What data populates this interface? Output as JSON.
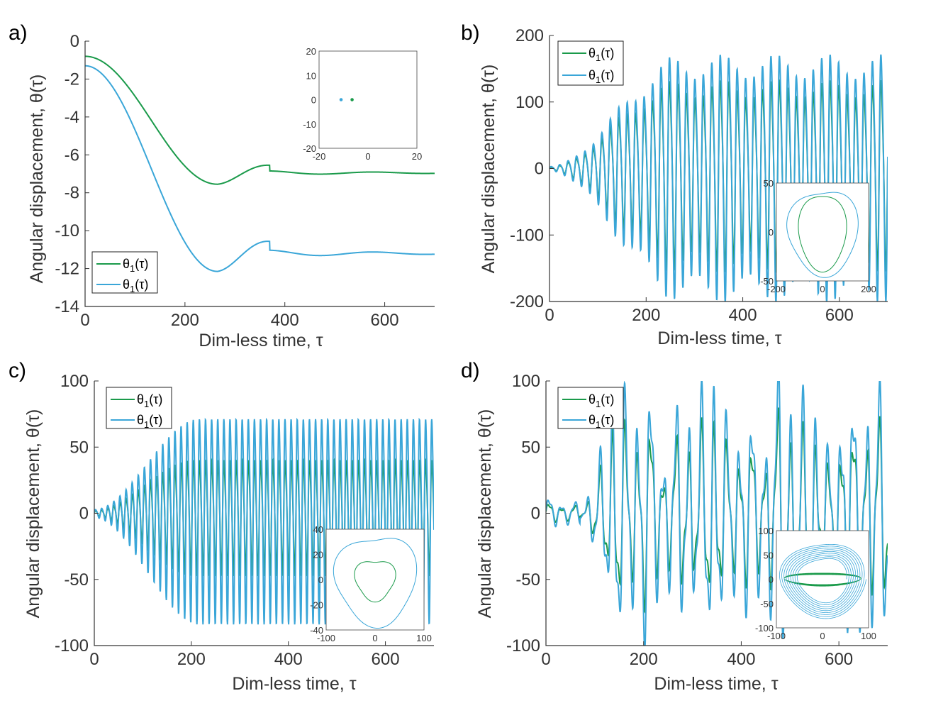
{
  "colors": {
    "green": "#1a9a4a",
    "blue": "#3aa6d8",
    "axis": "#333333"
  },
  "chart_data": [
    {
      "type": "line",
      "panel_label": "a)",
      "xlabel": "Dim-less time, τ",
      "ylabel": "Angular displacement, θ(τ)",
      "xlim": [
        0,
        700
      ],
      "ylim": [
        -14,
        0
      ],
      "xticks": [
        "0",
        "200",
        "400",
        "600"
      ],
      "yticks": [
        "-14",
        "-12",
        "-10",
        "-8",
        "-6",
        "-4",
        "-2",
        "0"
      ],
      "series": [
        {
          "name": "θ1(τ)",
          "color": "green",
          "kind": "settle",
          "start": -0.8,
          "final": -6.95,
          "min": -7.55,
          "t_min": 265,
          "bump": -6.8,
          "t_bump": 370
        },
        {
          "name": "θ1(τ)",
          "color": "blue",
          "kind": "settle",
          "start": -1.3,
          "final": -11.2,
          "min": -12.15,
          "t_min": 265,
          "bump": -10.95,
          "t_bump": 370
        }
      ],
      "legend": {
        "entries": [
          "θ1(τ)",
          "θ1(τ)"
        ],
        "location": "bottom-left"
      },
      "inset": {
        "type": "scatter",
        "xlim": [
          -20,
          20
        ],
        "ylim": [
          -20,
          20
        ],
        "xticks": [
          "-20",
          "0",
          "20"
        ],
        "yticks": [
          "-20",
          "-10",
          "0",
          "10",
          "20"
        ],
        "points": [
          {
            "x": -11,
            "y": 0,
            "color": "blue"
          },
          {
            "x": -6.5,
            "y": 0,
            "color": "green"
          }
        ]
      }
    },
    {
      "type": "line",
      "panel_label": "b)",
      "xlabel": "Dim-less time, τ",
      "ylabel": "Angular displacement, θ(τ)",
      "xlim": [
        0,
        700
      ],
      "ylim": [
        -200,
        200
      ],
      "xticks": [
        "0",
        "200",
        "400",
        "600"
      ],
      "yticks": [
        "-200",
        "-100",
        "0",
        "100",
        "200"
      ],
      "series": [
        {
          "name": "θ1(τ)",
          "color": "green",
          "kind": "growth",
          "amp_final": 130,
          "amp_start": 2,
          "t_growth": 265,
          "period": 17.5,
          "mod": 0.12
        },
        {
          "name": "θ1(τ)",
          "color": "blue",
          "kind": "growth",
          "amp_final": 168,
          "amp_start": 3,
          "t_growth": 275,
          "period": 17.5,
          "mod": 0.12
        }
      ],
      "legend": {
        "entries": [
          "θ1(τ)",
          "θ1(τ)"
        ],
        "location": "top-left"
      },
      "inset": {
        "type": "line",
        "xlim": [
          -200,
          200
        ],
        "ylim": [
          -50,
          50
        ],
        "xticks": [
          "-200",
          "0",
          "200"
        ],
        "yticks": [
          "-50",
          "0",
          "50"
        ],
        "loops": [
          {
            "color": "green",
            "rx": 100,
            "ry": 40,
            "wobble": 0.06
          },
          {
            "color": "blue",
            "rx": 145,
            "ry": 45,
            "wobble": 0.08
          }
        ]
      }
    },
    {
      "type": "line",
      "panel_label": "c)",
      "xlabel": "Dim-less time, τ",
      "ylabel": "Angular displacement, θ(τ)",
      "xlim": [
        0,
        700
      ],
      "ylim": [
        -100,
        100
      ],
      "xticks": [
        "0",
        "200",
        "400",
        "600"
      ],
      "yticks": [
        "-100",
        "-50",
        "0",
        "50",
        "100"
      ],
      "series": [
        {
          "name": "θ1(τ)",
          "color": "green",
          "kind": "growth",
          "amp_final": 44,
          "amp_start": 2,
          "t_growth": 205,
          "period": 12.6,
          "mod": 0
        },
        {
          "name": "θ1(τ)",
          "color": "blue",
          "kind": "growth",
          "amp_final": 78,
          "amp_start": 3,
          "t_growth": 215,
          "period": 12.6,
          "mod": 0
        }
      ],
      "legend": {
        "entries": [
          "θ1(τ)",
          "θ1(τ)"
        ],
        "location": "top-left"
      },
      "inset": {
        "type": "line",
        "xlim": [
          -100,
          100
        ],
        "ylim": [
          -40,
          40
        ],
        "xticks": [
          "-100",
          "0",
          "100"
        ],
        "yticks": [
          "-40",
          "-20",
          "0",
          "20",
          "40"
        ],
        "loops": [
          {
            "color": "green",
            "rx": 38,
            "ry": 17,
            "wobble": 0.12
          },
          {
            "color": "blue",
            "rx": 78,
            "ry": 37,
            "wobble": 0.1
          }
        ]
      }
    },
    {
      "type": "line",
      "panel_label": "d)",
      "xlabel": "Dim-less time, τ",
      "ylabel": "Angular displacement, θ(τ)",
      "xlim": [
        0,
        700
      ],
      "ylim": [
        -100,
        100
      ],
      "xticks": [
        "0",
        "200",
        "400",
        "600"
      ],
      "yticks": [
        "-100",
        "-50",
        "0",
        "50",
        "100"
      ],
      "series": [
        {
          "name": "θ1(τ)",
          "color": "green",
          "kind": "chaotic",
          "amp_final": 68,
          "amp_start": 3,
          "t_growth": 70,
          "period": 26
        },
        {
          "name": "θ1(τ)",
          "color": "blue",
          "kind": "chaotic",
          "amp_final": 95,
          "amp_start": 5,
          "t_growth": 70,
          "period": 26
        }
      ],
      "legend": {
        "entries": [
          "θ1(τ)",
          "θ1(τ)"
        ],
        "location": "top-left"
      },
      "inset": {
        "type": "line",
        "xlim": [
          -100,
          100
        ],
        "ylim": [
          -100,
          100
        ],
        "xticks": [
          "-100",
          "0",
          "100"
        ],
        "yticks": [
          "-100",
          "-50",
          "0",
          "50",
          "100"
        ],
        "loops": [
          {
            "color": "green",
            "rx": 80,
            "ry": 14,
            "wobble": 0.05
          },
          {
            "color": "blue",
            "rx": 92,
            "ry": 80,
            "wobble": 0.05
          }
        ]
      }
    }
  ]
}
